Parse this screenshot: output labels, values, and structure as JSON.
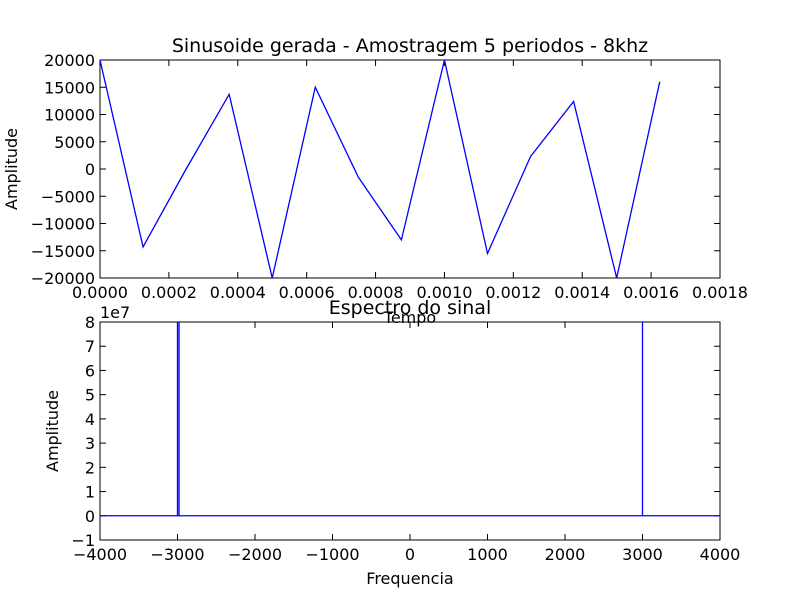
{
  "chart_data": [
    {
      "type": "line",
      "title": "Sinusoide gerada - Amostragem 5 periodos - 8khz",
      "xlabel": "Tempo",
      "ylabel": "Amplitude",
      "xlim": [
        0,
        0.0018
      ],
      "ylim": [
        -20000,
        20000
      ],
      "xticks": [
        0,
        0.0002,
        0.0004,
        0.0006,
        0.0008,
        0.001,
        0.0012,
        0.0014,
        0.0016,
        0.0018
      ],
      "xtick_labels": [
        "0.0000",
        "0.0002",
        "0.0004",
        "0.0006",
        "0.0008",
        "0.0010",
        "0.0012",
        "0.0014",
        "0.0016",
        "0.0018"
      ],
      "yticks": [
        -20000,
        -15000,
        -10000,
        -5000,
        0,
        5000,
        10000,
        15000,
        20000
      ],
      "ytick_labels": [
        "−20000",
        "−15000",
        "−10000",
        "−5000",
        "0",
        "5000",
        "10000",
        "15000",
        "20000"
      ],
      "grid": false,
      "color": "#0000ff",
      "series": [
        {
          "x": [
            0,
            0.000125,
            0.00025,
            0.000375,
            0.0005,
            0.000625,
            0.00075,
            0.000875,
            0.001,
            0.001125,
            0.00125,
            0.001375,
            0.0015,
            0.001625
          ],
          "y": [
            20000,
            -14300,
            0,
            13700,
            -20000,
            15000,
            -1500,
            -13000,
            20000,
            -15500,
            2300,
            12400,
            -20000,
            16000
          ]
        }
      ]
    },
    {
      "type": "line",
      "title": "Espectro do sinal",
      "xlabel": "Frequencia",
      "ylabel": "Amplitude",
      "offset_text": "1e7",
      "xlim": [
        -4000,
        4000
      ],
      "ylim": [
        -1,
        8
      ],
      "xticks": [
        -4000,
        -3000,
        -2000,
        -1000,
        0,
        1000,
        2000,
        3000,
        4000
      ],
      "xtick_labels": [
        "−4000",
        "−3000",
        "−2000",
        "−1000",
        "0",
        "1000",
        "2000",
        "3000",
        "4000"
      ],
      "yticks": [
        -1,
        0,
        1,
        2,
        3,
        4,
        5,
        6,
        7,
        8
      ],
      "ytick_labels": [
        "−1",
        "0",
        "1",
        "2",
        "3",
        "4",
        "5",
        "6",
        "7",
        "8"
      ],
      "grid": false,
      "color": "#0000ff",
      "series": [
        {
          "x": [
            -4000,
            -3000,
            -3000,
            -3000,
            -2980,
            -2980,
            -2980,
            3000,
            3000,
            3000,
            4000
          ],
          "y": [
            0,
            0,
            8,
            0,
            0,
            8,
            0,
            0,
            8,
            0,
            0
          ]
        }
      ]
    }
  ]
}
